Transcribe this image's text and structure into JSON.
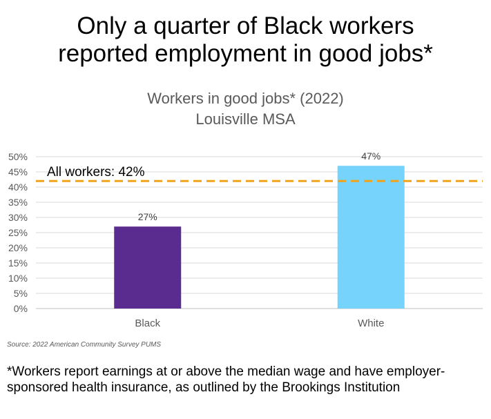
{
  "headline": {
    "line1": "Only a quarter of Black workers",
    "line2": "reported employment in good jobs*"
  },
  "chart_data": {
    "type": "bar",
    "title": "Workers in good jobs* (2022)",
    "subtitle": "Louisville MSA",
    "categories": [
      "Black",
      "White"
    ],
    "values": [
      27,
      47
    ],
    "data_labels": [
      "27%",
      "47%"
    ],
    "colors": [
      "#5b2c8f",
      "#75d3fc"
    ],
    "ylim": [
      0,
      50
    ],
    "yticks": [
      "0%",
      "5%",
      "10%",
      "15%",
      "20%",
      "25%",
      "30%",
      "35%",
      "40%",
      "45%",
      "50%"
    ],
    "grid": true,
    "reference_line": {
      "value": 42,
      "label": "All workers: 42%",
      "color": "#f2a31c",
      "style": "dashed"
    }
  },
  "source": "Source: 2022 American Community Survey PUMS",
  "footnote": "*Workers report earnings at or above the median wage and have employer-sponsored health insurance, as outlined by the Brookings Institution"
}
